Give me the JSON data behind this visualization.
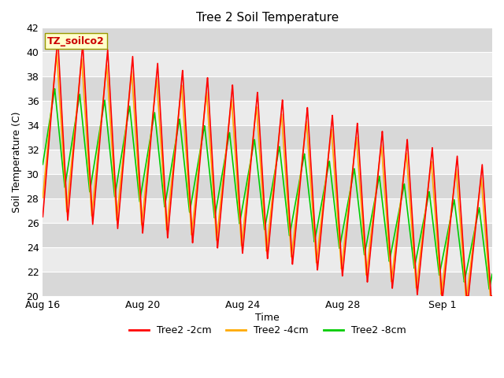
{
  "title": "Tree 2 Soil Temperature",
  "xlabel": "Time",
  "ylabel": "Soil Temperature (C)",
  "ylim": [
    20,
    42
  ],
  "yticks": [
    20,
    22,
    24,
    26,
    28,
    30,
    32,
    34,
    36,
    38,
    40,
    42
  ],
  "xtick_labels": [
    "Aug 16",
    "Aug 20",
    "Aug 24",
    "Aug 28",
    "Sep 1"
  ],
  "xtick_positions": [
    0,
    4,
    8,
    12,
    16
  ],
  "legend_entries": [
    "Tree2 -2cm",
    "Tree2 -4cm",
    "Tree2 -8cm"
  ],
  "legend_colors": [
    "#ff0000",
    "#ffaa00",
    "#00cc00"
  ],
  "annotation_text": "TZ_soilco2",
  "annotation_color": "#cc0000",
  "annotation_bg": "#ffffcc",
  "annotation_border": "#999900",
  "background_color": "#ffffff",
  "stripe_light": "#ebebeb",
  "stripe_dark": "#d8d8d8",
  "grid_color": "#ffffff",
  "line_colors": [
    "#ff0000",
    "#ffaa00",
    "#00cc00"
  ],
  "line_width": 1.2,
  "n_days": 18,
  "n_points": 3600
}
